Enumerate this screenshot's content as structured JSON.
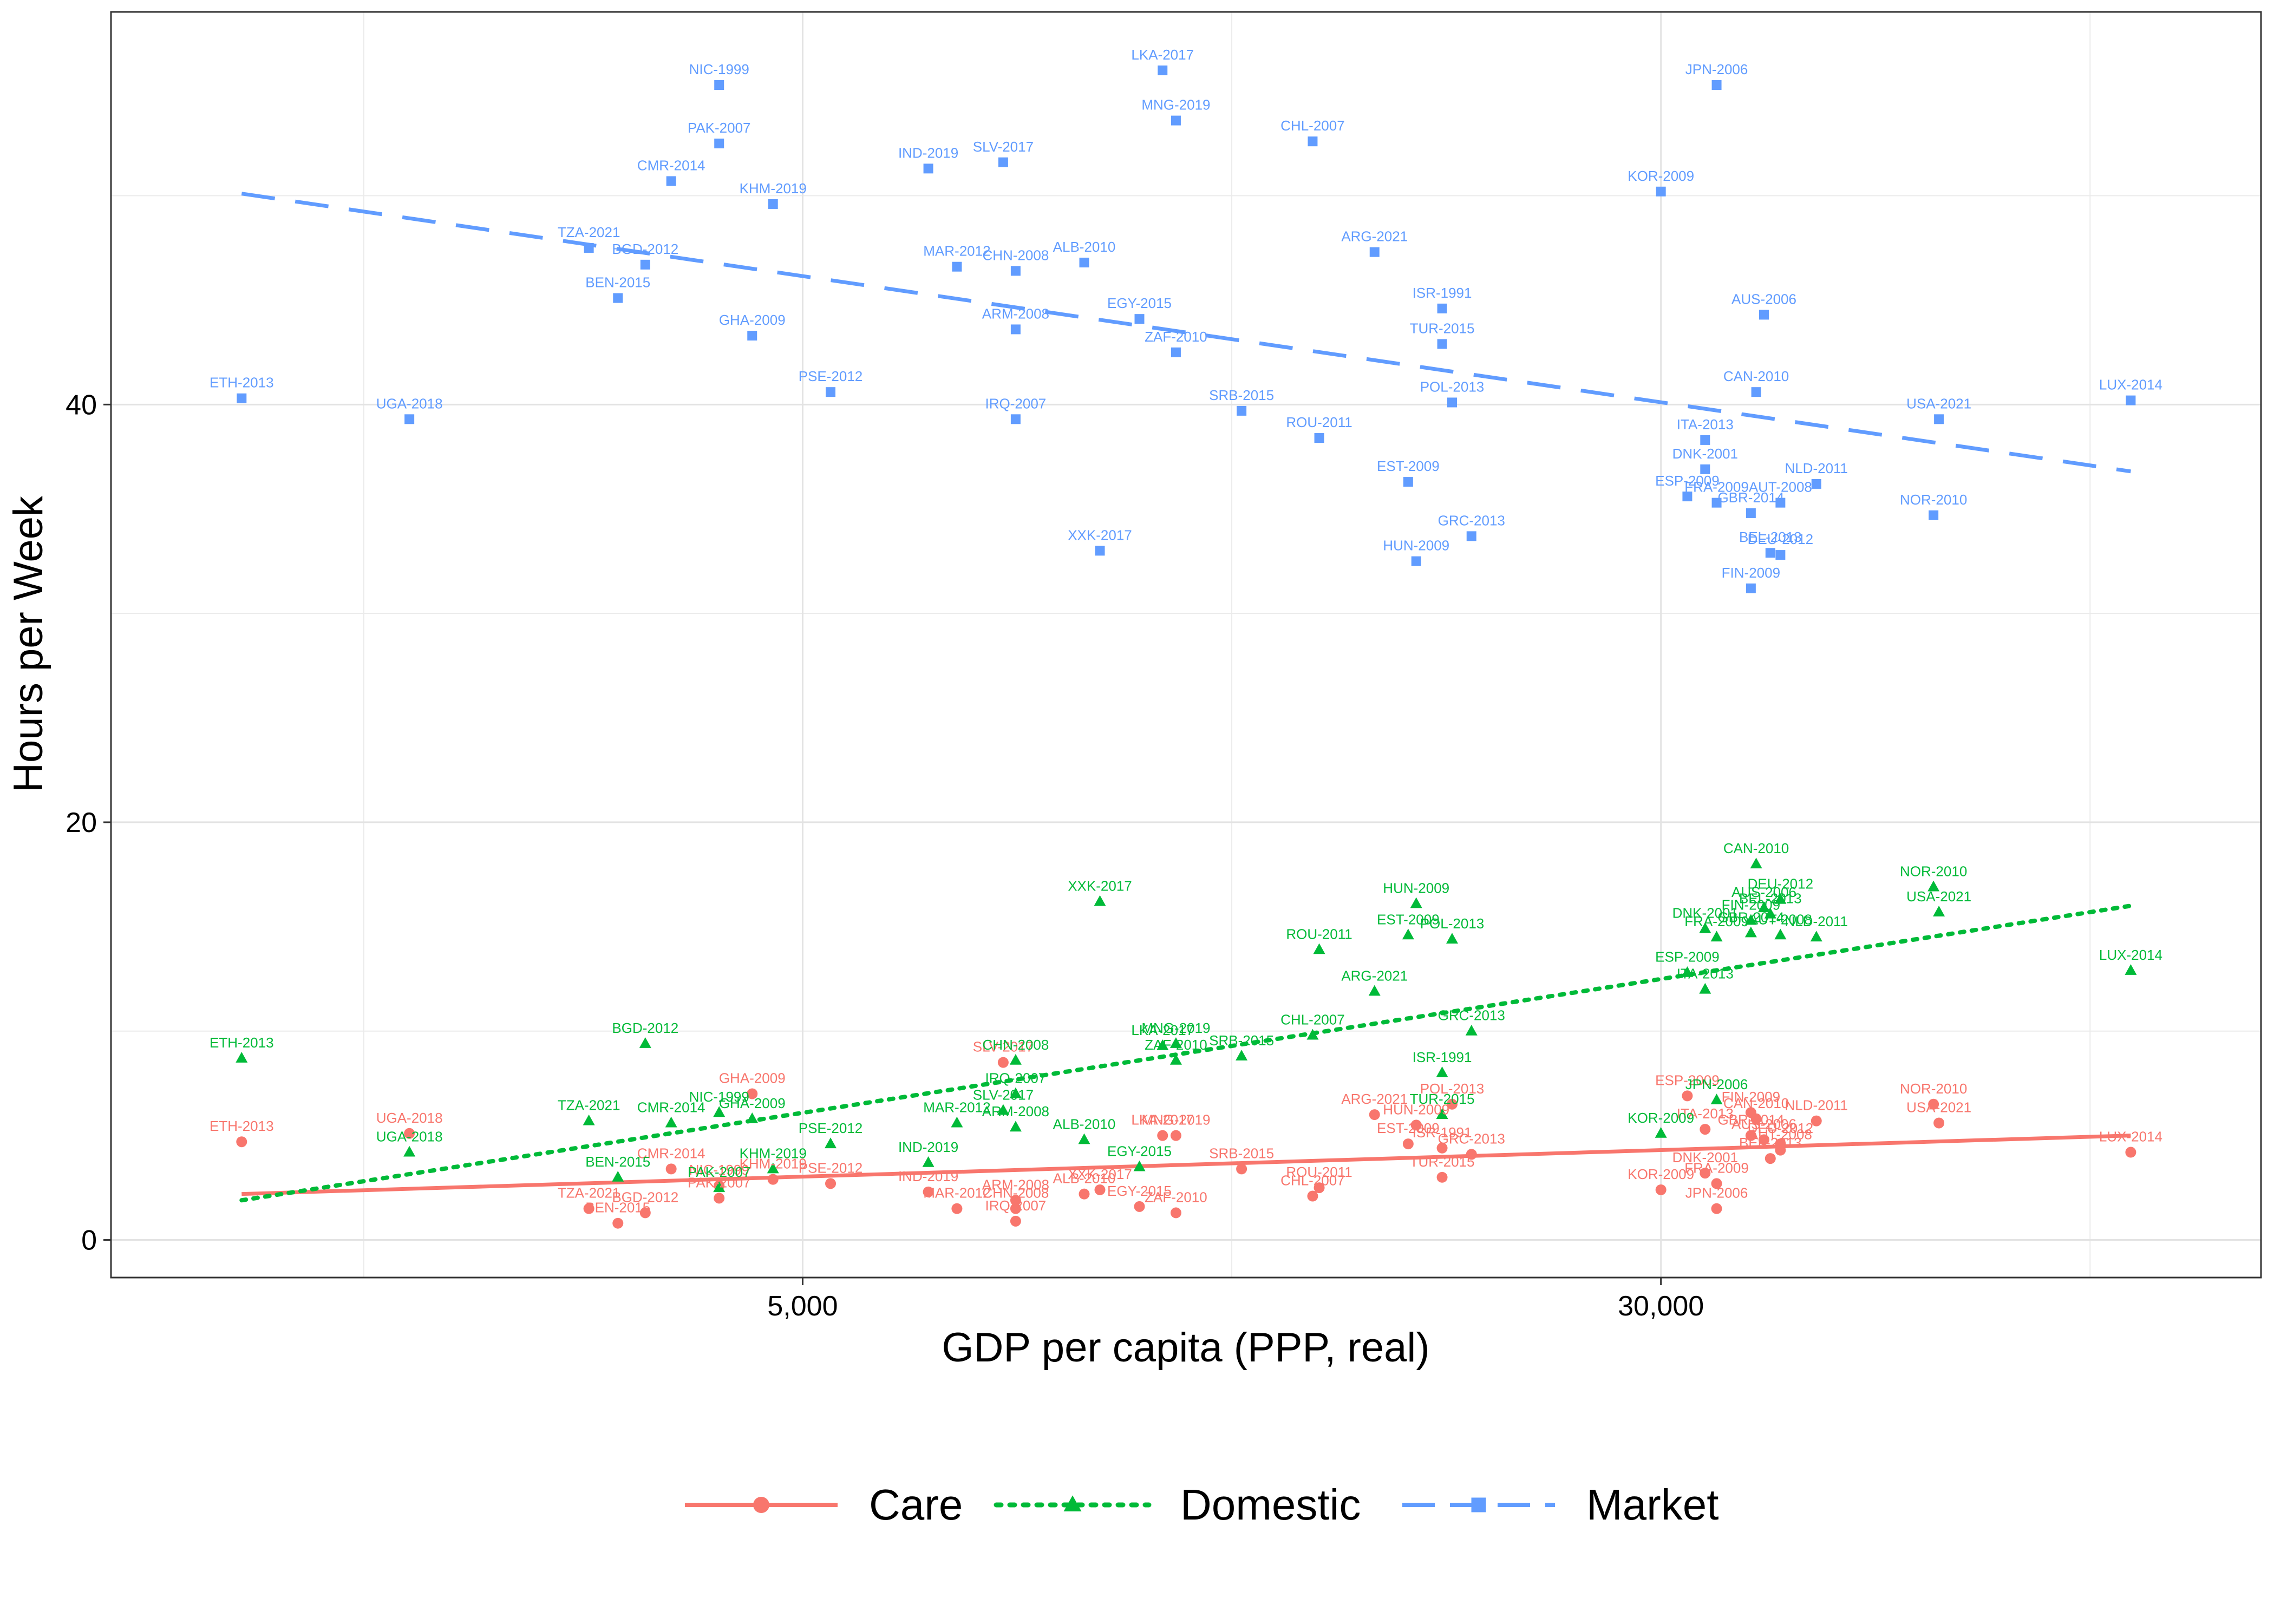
{
  "chart_data": {
    "type": "scatter",
    "xlabel": "GDP per capita (PPP, real)",
    "ylabel": "Hours per Week",
    "xscale": "log",
    "xlim": [
      1180,
      105000
    ],
    "ylim": [
      -1.8,
      58.8
    ],
    "xticks": [
      {
        "value": 5000,
        "label": "5,000"
      },
      {
        "value": 30000,
        "label": "30,000"
      }
    ],
    "xgrid_minor": [
      2000,
      12247,
      73485
    ],
    "yticks": [
      {
        "value": 0,
        "label": "0"
      },
      {
        "value": 20,
        "label": "20"
      },
      {
        "value": 40,
        "label": "40"
      }
    ],
    "ygrid_minor": [
      10,
      30,
      50
    ],
    "grid": true,
    "legend_position": "bottom",
    "series": [
      {
        "name": "Care",
        "color": "#F8766D",
        "marker": "circle",
        "line": "solid",
        "trend": {
          "x": [
            1550,
            80000
          ],
          "y": [
            2.2,
            5.0
          ]
        },
        "points": [
          {
            "label": "ETH-2013",
            "x": 1550,
            "y": 4.7
          },
          {
            "label": "UGA-2018",
            "x": 2200,
            "y": 5.1
          },
          {
            "label": "TZA-2021",
            "x": 3200,
            "y": 1.5
          },
          {
            "label": "BEN-2015",
            "x": 3400,
            "y": 0.8
          },
          {
            "label": "BGD-2012",
            "x": 3600,
            "y": 1.3
          },
          {
            "label": "CMR-2014",
            "x": 3800,
            "y": 3.4
          },
          {
            "label": "NIC-1999",
            "x": 4200,
            "y": 2.6
          },
          {
            "label": "PAK-2007",
            "x": 4200,
            "y": 2.0
          },
          {
            "label": "GHA-2009",
            "x": 4500,
            "y": 7.0
          },
          {
            "label": "KHM-2019",
            "x": 4700,
            "y": 2.9
          },
          {
            "label": "PSE-2012",
            "x": 5300,
            "y": 2.7
          },
          {
            "label": "IND-2019",
            "x": 6500,
            "y": 2.3
          },
          {
            "label": "MAR-2012",
            "x": 6900,
            "y": 1.5
          },
          {
            "label": "SLV-2017",
            "x": 7600,
            "y": 8.5
          },
          {
            "label": "CHN-2008",
            "x": 7800,
            "y": 1.5
          },
          {
            "label": "ARM-2008",
            "x": 7800,
            "y": 1.9
          },
          {
            "label": "IRQ-2007",
            "x": 7800,
            "y": 0.9
          },
          {
            "label": "ALB-2010",
            "x": 9000,
            "y": 2.2
          },
          {
            "label": "XXK-2017",
            "x": 9300,
            "y": 2.4
          },
          {
            "label": "EGY-2015",
            "x": 10100,
            "y": 1.6
          },
          {
            "label": "LKA-2017",
            "x": 10600,
            "y": 5.0
          },
          {
            "label": "MNG-2019",
            "x": 10900,
            "y": 5.0
          },
          {
            "label": "ZAF-2010",
            "x": 10900,
            "y": 1.3
          },
          {
            "label": "SRB-2015",
            "x": 12500,
            "y": 3.4
          },
          {
            "label": "CHL-2007",
            "x": 14500,
            "y": 2.1
          },
          {
            "label": "ROU-2011",
            "x": 14700,
            "y": 2.5
          },
          {
            "label": "ARG-2021",
            "x": 16500,
            "y": 6.0
          },
          {
            "label": "EST-2009",
            "x": 17700,
            "y": 4.6
          },
          {
            "label": "HUN-2009",
            "x": 18000,
            "y": 5.5
          },
          {
            "label": "ISR-1991",
            "x": 19000,
            "y": 4.4
          },
          {
            "label": "TUR-2015",
            "x": 19000,
            "y": 3.0
          },
          {
            "label": "POL-2013",
            "x": 19400,
            "y": 6.5
          },
          {
            "label": "GRC-2013",
            "x": 20200,
            "y": 4.1
          },
          {
            "label": "KOR-2009",
            "x": 30000,
            "y": 2.4
          },
          {
            "label": "ESP-2009",
            "x": 31700,
            "y": 6.9
          },
          {
            "label": "ITA-2013",
            "x": 32900,
            "y": 5.3
          },
          {
            "label": "DNK-2001",
            "x": 32900,
            "y": 3.2
          },
          {
            "label": "FRA-2009",
            "x": 33700,
            "y": 2.7
          },
          {
            "label": "JPN-2006",
            "x": 33700,
            "y": 1.5
          },
          {
            "label": "FIN-2009",
            "x": 36200,
            "y": 6.1
          },
          {
            "label": "GBR-2014",
            "x": 36200,
            "y": 5.0
          },
          {
            "label": "CAN-2010",
            "x": 36600,
            "y": 5.8
          },
          {
            "label": "AUS-2006",
            "x": 37200,
            "y": 4.8
          },
          {
            "label": "BEL-2013",
            "x": 37700,
            "y": 3.9
          },
          {
            "label": "DEU-2012",
            "x": 38500,
            "y": 4.6
          },
          {
            "label": "AUT-2008",
            "x": 38500,
            "y": 4.3
          },
          {
            "label": "NLD-2011",
            "x": 41500,
            "y": 5.7
          },
          {
            "label": "NOR-2010",
            "x": 53000,
            "y": 6.5
          },
          {
            "label": "USA-2021",
            "x": 53600,
            "y": 5.6
          },
          {
            "label": "LUX-2014",
            "x": 80000,
            "y": 4.2
          }
        ]
      },
      {
        "name": "Domestic",
        "color": "#00BA38",
        "marker": "triangle",
        "line": "dotted",
        "trend": {
          "x": [
            1550,
            80000
          ],
          "y": [
            1.9,
            16.0
          ]
        },
        "points": [
          {
            "label": "ETH-2013",
            "x": 1550,
            "y": 8.7
          },
          {
            "label": "UGA-2018",
            "x": 2200,
            "y": 4.2
          },
          {
            "label": "TZA-2021",
            "x": 3200,
            "y": 5.7
          },
          {
            "label": "BEN-2015",
            "x": 3400,
            "y": 3.0
          },
          {
            "label": "BGD-2012",
            "x": 3600,
            "y": 9.4
          },
          {
            "label": "CMR-2014",
            "x": 3800,
            "y": 5.6
          },
          {
            "label": "NIC-1999",
            "x": 4200,
            "y": 6.1
          },
          {
            "label": "PAK-2007",
            "x": 4200,
            "y": 2.5
          },
          {
            "label": "GHA-2009",
            "x": 4500,
            "y": 5.8
          },
          {
            "label": "KHM-2019",
            "x": 4700,
            "y": 3.4
          },
          {
            "label": "PSE-2012",
            "x": 5300,
            "y": 4.6
          },
          {
            "label": "IND-2019",
            "x": 6500,
            "y": 3.7
          },
          {
            "label": "MAR-2012",
            "x": 6900,
            "y": 5.6
          },
          {
            "label": "SLV-2017",
            "x": 7600,
            "y": 6.2
          },
          {
            "label": "CHN-2008",
            "x": 7800,
            "y": 8.6
          },
          {
            "label": "ARM-2008",
            "x": 7800,
            "y": 5.4
          },
          {
            "label": "IRQ-2007",
            "x": 7800,
            "y": 7.0
          },
          {
            "label": "ALB-2010",
            "x": 9000,
            "y": 4.8
          },
          {
            "label": "XXK-2017",
            "x": 9300,
            "y": 16.2
          },
          {
            "label": "EGY-2015",
            "x": 10100,
            "y": 3.5
          },
          {
            "label": "LKA-2017",
            "x": 10600,
            "y": 9.3
          },
          {
            "label": "MNG-2019",
            "x": 10900,
            "y": 9.4
          },
          {
            "label": "ZAF-2010",
            "x": 10900,
            "y": 8.6
          },
          {
            "label": "SRB-2015",
            "x": 12500,
            "y": 8.8
          },
          {
            "label": "CHL-2007",
            "x": 14500,
            "y": 9.8
          },
          {
            "label": "ROU-2011",
            "x": 14700,
            "y": 13.9
          },
          {
            "label": "ARG-2021",
            "x": 16500,
            "y": 11.9
          },
          {
            "label": "EST-2009",
            "x": 17700,
            "y": 14.6
          },
          {
            "label": "HUN-2009",
            "x": 18000,
            "y": 16.1
          },
          {
            "label": "ISR-1991",
            "x": 19000,
            "y": 8.0
          },
          {
            "label": "TUR-2015",
            "x": 19000,
            "y": 6.0
          },
          {
            "label": "POL-2013",
            "x": 19400,
            "y": 14.4
          },
          {
            "label": "GRC-2013",
            "x": 20200,
            "y": 10.0
          },
          {
            "label": "KOR-2009",
            "x": 30000,
            "y": 5.1
          },
          {
            "label": "ESP-2009",
            "x": 31700,
            "y": 12.8
          },
          {
            "label": "ITA-2013",
            "x": 32900,
            "y": 12.0
          },
          {
            "label": "DNK-2001",
            "x": 32900,
            "y": 14.9
          },
          {
            "label": "FRA-2009",
            "x": 33700,
            "y": 14.5
          },
          {
            "label": "JPN-2006",
            "x": 33700,
            "y": 6.7
          },
          {
            "label": "FIN-2009",
            "x": 36200,
            "y": 15.3
          },
          {
            "label": "GBR-2014",
            "x": 36200,
            "y": 14.7
          },
          {
            "label": "CAN-2010",
            "x": 36600,
            "y": 18.0
          },
          {
            "label": "AUS-2006",
            "x": 37200,
            "y": 15.9
          },
          {
            "label": "BEL-2013",
            "x": 37700,
            "y": 15.6
          },
          {
            "label": "DEU-2012",
            "x": 38500,
            "y": 16.3
          },
          {
            "label": "AUT-2008",
            "x": 38500,
            "y": 14.6
          },
          {
            "label": "NLD-2011",
            "x": 41500,
            "y": 14.5
          },
          {
            "label": "NOR-2010",
            "x": 53000,
            "y": 16.9
          },
          {
            "label": "USA-2021",
            "x": 53600,
            "y": 15.7
          },
          {
            "label": "LUX-2014",
            "x": 80000,
            "y": 12.9
          }
        ]
      },
      {
        "name": "Market",
        "color": "#619CFF",
        "marker": "square",
        "line": "dashed",
        "trend": {
          "x": [
            1550,
            80000
          ],
          "y": [
            50.1,
            36.8
          ]
        },
        "points": [
          {
            "label": "ETH-2013",
            "x": 1550,
            "y": 40.3
          },
          {
            "label": "UGA-2018",
            "x": 2200,
            "y": 39.3
          },
          {
            "label": "TZA-2021",
            "x": 3200,
            "y": 47.5
          },
          {
            "label": "BEN-2015",
            "x": 3400,
            "y": 45.1
          },
          {
            "label": "BGD-2012",
            "x": 3600,
            "y": 46.7
          },
          {
            "label": "CMR-2014",
            "x": 3800,
            "y": 50.7
          },
          {
            "label": "NIC-1999",
            "x": 4200,
            "y": 55.3
          },
          {
            "label": "PAK-2007",
            "x": 4200,
            "y": 52.5
          },
          {
            "label": "GHA-2009",
            "x": 4500,
            "y": 43.3
          },
          {
            "label": "KHM-2019",
            "x": 4700,
            "y": 49.6
          },
          {
            "label": "PSE-2012",
            "x": 5300,
            "y": 40.6
          },
          {
            "label": "IND-2019",
            "x": 6500,
            "y": 51.3
          },
          {
            "label": "MAR-2012",
            "x": 6900,
            "y": 46.6
          },
          {
            "label": "SLV-2017",
            "x": 7600,
            "y": 51.6
          },
          {
            "label": "CHN-2008",
            "x": 7800,
            "y": 46.4
          },
          {
            "label": "ARM-2008",
            "x": 7800,
            "y": 43.6
          },
          {
            "label": "IRQ-2007",
            "x": 7800,
            "y": 39.3
          },
          {
            "label": "ALB-2010",
            "x": 9000,
            "y": 46.8
          },
          {
            "label": "XXK-2017",
            "x": 9300,
            "y": 33.0
          },
          {
            "label": "EGY-2015",
            "x": 10100,
            "y": 44.1
          },
          {
            "label": "LKA-2017",
            "x": 10600,
            "y": 56.0
          },
          {
            "label": "MNG-2019",
            "x": 10900,
            "y": 53.6
          },
          {
            "label": "ZAF-2010",
            "x": 10900,
            "y": 42.5
          },
          {
            "label": "SRB-2015",
            "x": 12500,
            "y": 39.7
          },
          {
            "label": "CHL-2007",
            "x": 14500,
            "y": 52.6
          },
          {
            "label": "ROU-2011",
            "x": 14700,
            "y": 38.4
          },
          {
            "label": "ARG-2021",
            "x": 16500,
            "y": 47.3
          },
          {
            "label": "EST-2009",
            "x": 17700,
            "y": 36.3
          },
          {
            "label": "HUN-2009",
            "x": 18000,
            "y": 32.5
          },
          {
            "label": "ISR-1991",
            "x": 19000,
            "y": 44.6
          },
          {
            "label": "TUR-2015",
            "x": 19000,
            "y": 42.9
          },
          {
            "label": "POL-2013",
            "x": 19400,
            "y": 40.1
          },
          {
            "label": "GRC-2013",
            "x": 20200,
            "y": 33.7
          },
          {
            "label": "KOR-2009",
            "x": 30000,
            "y": 50.2
          },
          {
            "label": "ESP-2009",
            "x": 31700,
            "y": 35.6
          },
          {
            "label": "ITA-2013",
            "x": 32900,
            "y": 38.3
          },
          {
            "label": "DNK-2001",
            "x": 32900,
            "y": 36.9
          },
          {
            "label": "FRA-2009",
            "x": 33700,
            "y": 35.3
          },
          {
            "label": "JPN-2006",
            "x": 33700,
            "y": 55.3
          },
          {
            "label": "FIN-2009",
            "x": 36200,
            "y": 31.2
          },
          {
            "label": "GBR-2014",
            "x": 36200,
            "y": 34.8
          },
          {
            "label": "CAN-2010",
            "x": 36600,
            "y": 40.6
          },
          {
            "label": "AUS-2006",
            "x": 37200,
            "y": 44.3
          },
          {
            "label": "BEL-2013",
            "x": 37700,
            "y": 32.9
          },
          {
            "label": "DEU-2012",
            "x": 38500,
            "y": 32.8
          },
          {
            "label": "AUT-2008",
            "x": 38500,
            "y": 35.3
          },
          {
            "label": "NLD-2011",
            "x": 41500,
            "y": 36.2
          },
          {
            "label": "NOR-2010",
            "x": 53000,
            "y": 34.7
          },
          {
            "label": "USA-2021",
            "x": 53600,
            "y": 39.3
          },
          {
            "label": "LUX-2014",
            "x": 80000,
            "y": 40.2
          }
        ]
      }
    ]
  }
}
